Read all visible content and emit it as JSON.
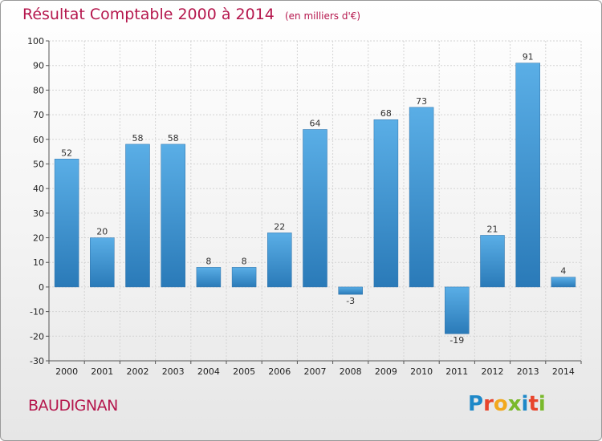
{
  "title": "Résultat Comptable 2000 à 2014",
  "subtitle": "(en milliers d'€)",
  "commune": "BAUDIGNAN",
  "logo": "Proxiti",
  "colors": {
    "title": "#b5174d",
    "bar_top": "#5aaee6",
    "bar_bottom": "#2a7ab8",
    "grid": "#d4d4d4",
    "axis": "#555555"
  },
  "chart_data": {
    "type": "bar",
    "title": "Résultat Comptable 2000 à 2014",
    "subtitle": "(en milliers d'€)",
    "xlabel": "",
    "ylabel": "",
    "categories": [
      "2000",
      "2001",
      "2002",
      "2003",
      "2004",
      "2005",
      "2006",
      "2007",
      "2008",
      "2009",
      "2010",
      "2011",
      "2012",
      "2013",
      "2014"
    ],
    "values": [
      52,
      20,
      58,
      58,
      8,
      8,
      22,
      64,
      -3,
      68,
      73,
      -19,
      21,
      91,
      4
    ],
    "ylim": [
      -30,
      100
    ],
    "yticks": [
      -30,
      -20,
      -10,
      0,
      10,
      20,
      30,
      40,
      50,
      60,
      70,
      80,
      90,
      100
    ],
    "grid": true,
    "legend": "none"
  }
}
